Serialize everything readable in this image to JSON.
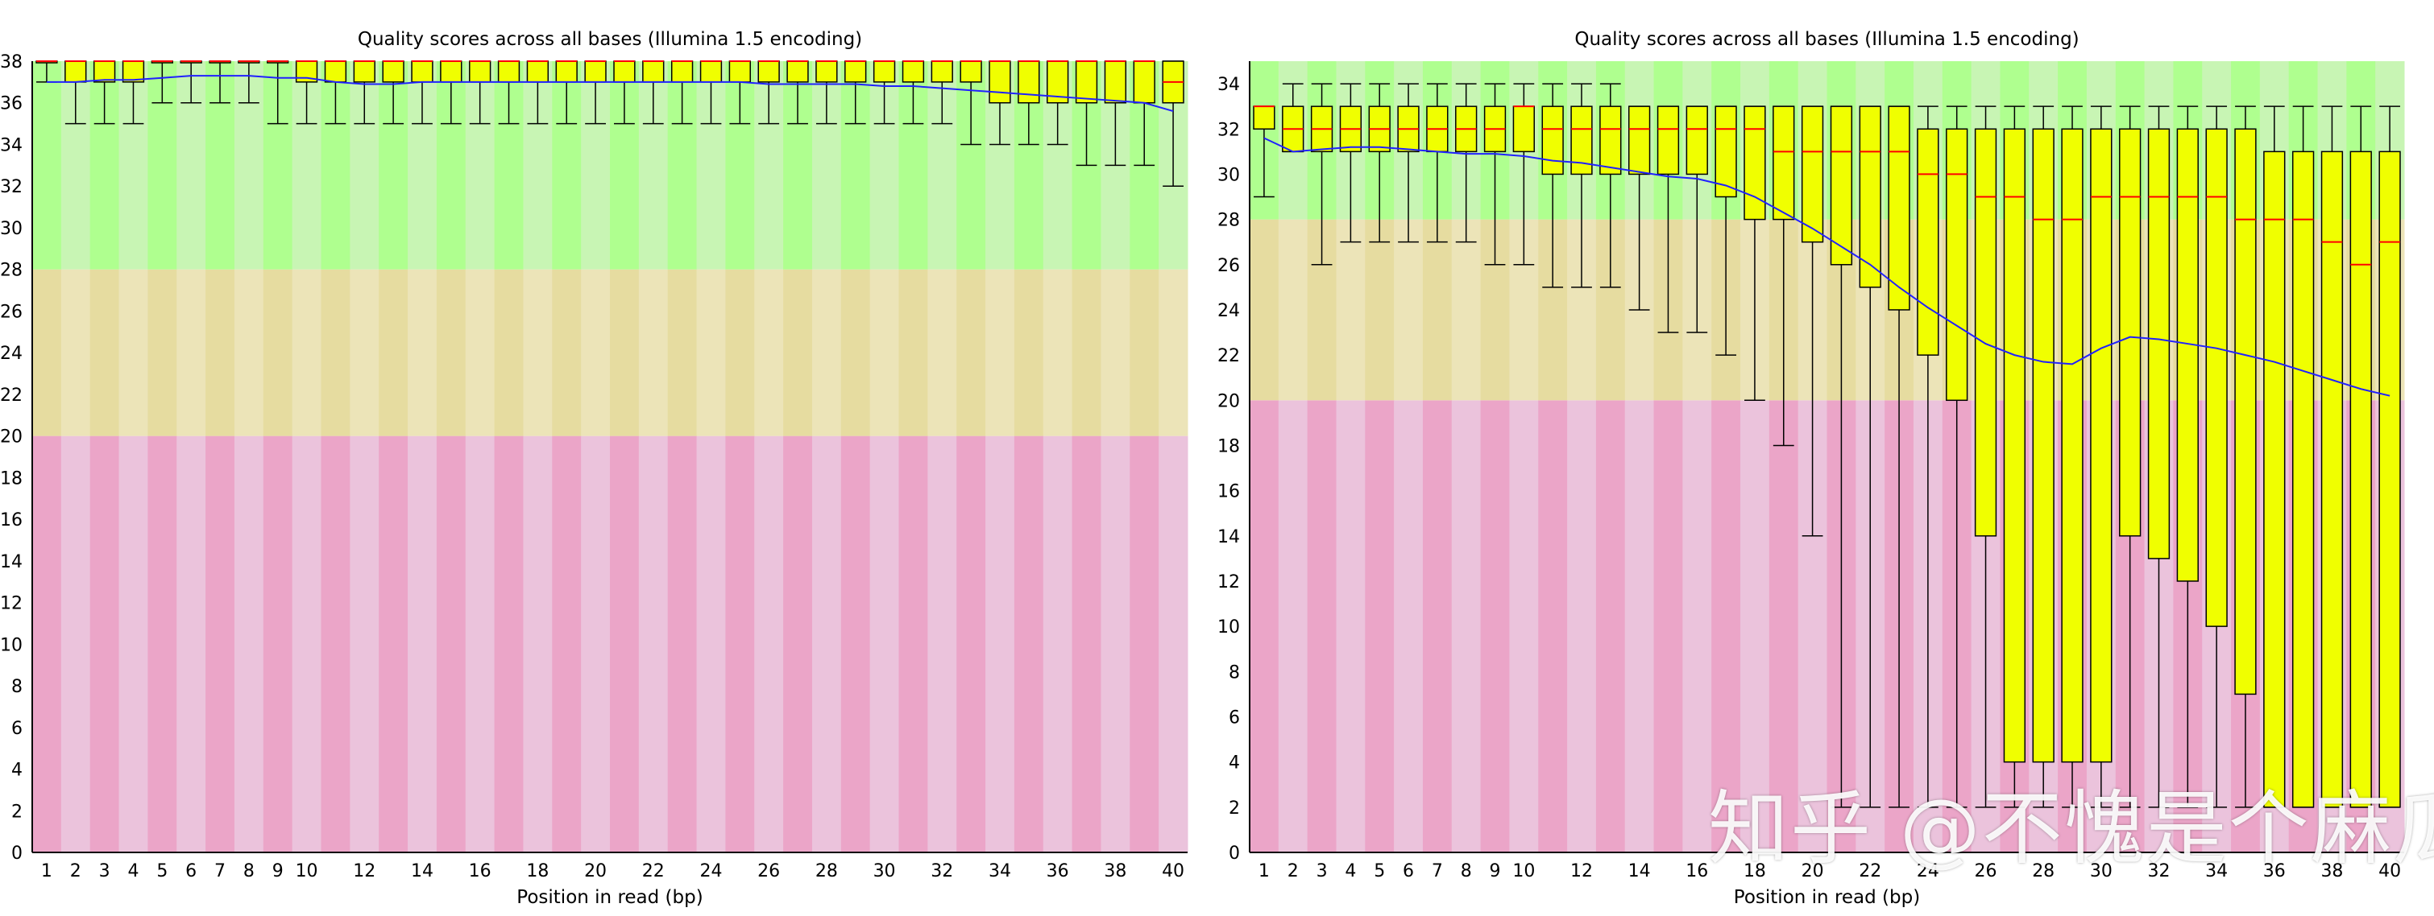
{
  "watermark": "知乎 @不愧是个麻瓜",
  "colors": {
    "green_dark": "#afff8f",
    "green_light": "#c8f5b4",
    "orange_dark": "#e6dca0",
    "orange_light": "#ece4b8",
    "red_dark": "#eba5c8",
    "red_light": "#ebc3dc",
    "box": "#f0ff00",
    "median": "#ff0000",
    "mean": "#2020ff"
  },
  "chart_data": [
    {
      "type": "boxplot",
      "title": "Quality scores across all bases (Illumina 1.5 encoding)",
      "xlabel": "Position in read (bp)",
      "ylabel": "",
      "ylim": [
        0,
        38
      ],
      "yticks": [
        0,
        2,
        4,
        6,
        8,
        10,
        12,
        14,
        16,
        18,
        20,
        22,
        24,
        26,
        28,
        30,
        32,
        34,
        36,
        38
      ],
      "xticks": [
        "1",
        "2",
        "3",
        "4",
        "5",
        "6",
        "7",
        "8",
        "9",
        "10",
        "12",
        "14",
        "16",
        "18",
        "20",
        "22",
        "24",
        "26",
        "28",
        "30",
        "32",
        "34",
        "36",
        "38",
        "40"
      ],
      "x_labeled_positions": [
        1,
        2,
        3,
        4,
        5,
        6,
        7,
        8,
        9,
        10,
        12,
        14,
        16,
        18,
        20,
        22,
        24,
        26,
        28,
        30,
        32,
        34,
        36,
        38,
        40
      ],
      "bands": [
        {
          "from": 0,
          "to": 20,
          "quality": "poor"
        },
        {
          "from": 20,
          "to": 28,
          "quality": "reasonable"
        },
        {
          "from": 28,
          "to": 38,
          "quality": "good"
        }
      ],
      "positions": [
        1,
        2,
        3,
        4,
        5,
        6,
        7,
        8,
        9,
        10,
        11,
        12,
        13,
        14,
        15,
        16,
        17,
        18,
        19,
        20,
        21,
        22,
        23,
        24,
        25,
        26,
        27,
        28,
        29,
        30,
        31,
        32,
        33,
        34,
        35,
        36,
        37,
        38,
        39,
        40
      ],
      "q1": [
        38,
        37,
        37,
        37,
        38,
        38,
        38,
        38,
        38,
        37,
        37,
        37,
        37,
        37,
        37,
        37,
        37,
        37,
        37,
        37,
        37,
        37,
        37,
        37,
        37,
        37,
        37,
        37,
        37,
        37,
        37,
        37,
        37,
        36,
        36,
        36,
        36,
        36,
        36,
        36
      ],
      "q3": [
        38,
        38,
        38,
        38,
        38,
        38,
        38,
        38,
        38,
        38,
        38,
        38,
        38,
        38,
        38,
        38,
        38,
        38,
        38,
        38,
        38,
        38,
        38,
        38,
        38,
        38,
        38,
        38,
        38,
        38,
        38,
        38,
        38,
        38,
        38,
        38,
        38,
        38,
        38,
        38
      ],
      "median": [
        38,
        38,
        38,
        38,
        38,
        38,
        38,
        38,
        38,
        38,
        38,
        38,
        38,
        38,
        38,
        38,
        38,
        38,
        38,
        38,
        38,
        38,
        38,
        38,
        38,
        38,
        38,
        38,
        38,
        38,
        38,
        38,
        38,
        38,
        38,
        38,
        38,
        38,
        38,
        37
      ],
      "low": [
        37,
        35,
        35,
        35,
        36,
        36,
        36,
        36,
        35,
        35,
        35,
        35,
        35,
        35,
        35,
        35,
        35,
        35,
        35,
        35,
        35,
        35,
        35,
        35,
        35,
        35,
        35,
        35,
        35,
        35,
        35,
        35,
        34,
        34,
        34,
        34,
        33,
        33,
        33,
        32
      ],
      "high": [
        38,
        38,
        38,
        38,
        38,
        38,
        38,
        38,
        38,
        38,
        38,
        38,
        38,
        38,
        38,
        38,
        38,
        38,
        38,
        38,
        38,
        38,
        38,
        38,
        38,
        38,
        38,
        38,
        38,
        38,
        38,
        38,
        38,
        38,
        38,
        38,
        38,
        38,
        38,
        38
      ],
      "mean": [
        37.0,
        37.0,
        37.1,
        37.1,
        37.2,
        37.3,
        37.3,
        37.3,
        37.2,
        37.2,
        37.0,
        36.9,
        36.9,
        37.0,
        37.0,
        37.0,
        37.0,
        37.0,
        37.0,
        37.0,
        37.0,
        37.0,
        37.0,
        37.0,
        37.0,
        36.9,
        36.9,
        36.9,
        36.9,
        36.8,
        36.8,
        36.7,
        36.6,
        36.5,
        36.4,
        36.3,
        36.2,
        36.1,
        36.0,
        35.6
      ]
    },
    {
      "type": "boxplot",
      "title": "Quality scores across all bases (Illumina 1.5 encoding)",
      "xlabel": "Position in read (bp)",
      "ylabel": "",
      "ylim": [
        0,
        35
      ],
      "yticks": [
        0,
        2,
        4,
        6,
        8,
        10,
        12,
        14,
        16,
        18,
        20,
        22,
        24,
        26,
        28,
        30,
        32,
        34
      ],
      "xticks": [
        "1",
        "2",
        "3",
        "4",
        "5",
        "6",
        "7",
        "8",
        "9",
        "10",
        "12",
        "14",
        "16",
        "18",
        "20",
        "22",
        "24",
        "26",
        "28",
        "30",
        "32",
        "34",
        "36",
        "38",
        "40"
      ],
      "x_labeled_positions": [
        1,
        2,
        3,
        4,
        5,
        6,
        7,
        8,
        9,
        10,
        12,
        14,
        16,
        18,
        20,
        22,
        24,
        26,
        28,
        30,
        32,
        34,
        36,
        38,
        40
      ],
      "bands": [
        {
          "from": 0,
          "to": 20,
          "quality": "poor"
        },
        {
          "from": 20,
          "to": 28,
          "quality": "reasonable"
        },
        {
          "from": 28,
          "to": 35,
          "quality": "good"
        }
      ],
      "positions": [
        1,
        2,
        3,
        4,
        5,
        6,
        7,
        8,
        9,
        10,
        11,
        12,
        13,
        14,
        15,
        16,
        17,
        18,
        19,
        20,
        21,
        22,
        23,
        24,
        25,
        26,
        27,
        28,
        29,
        30,
        31,
        32,
        33,
        34,
        35,
        36,
        37,
        38,
        39,
        40
      ],
      "q1": [
        32,
        31,
        31,
        31,
        31,
        31,
        31,
        31,
        31,
        31,
        30,
        30,
        30,
        30,
        30,
        30,
        29,
        28,
        28,
        27,
        26,
        25,
        24,
        22,
        20,
        14,
        4,
        4,
        4,
        4,
        14,
        13,
        12,
        10,
        7,
        2,
        2,
        2,
        2,
        2
      ],
      "q3": [
        33,
        33,
        33,
        33,
        33,
        33,
        33,
        33,
        33,
        33,
        33,
        33,
        33,
        33,
        33,
        33,
        33,
        33,
        33,
        33,
        33,
        33,
        33,
        32,
        32,
        32,
        32,
        32,
        32,
        32,
        32,
        32,
        32,
        32,
        32,
        31,
        31,
        31,
        31,
        31
      ],
      "median": [
        33,
        32,
        32,
        32,
        32,
        32,
        32,
        32,
        32,
        33,
        32,
        32,
        32,
        32,
        32,
        32,
        32,
        32,
        31,
        31,
        31,
        31,
        31,
        30,
        30,
        29,
        29,
        28,
        28,
        29,
        29,
        29,
        29,
        29,
        28,
        28,
        28,
        27,
        26,
        27
      ],
      "low": [
        29,
        31,
        26,
        27,
        27,
        27,
        27,
        27,
        26,
        26,
        25,
        25,
        25,
        24,
        23,
        23,
        22,
        20,
        18,
        14,
        2,
        2,
        2,
        2,
        2,
        2,
        2,
        2,
        2,
        2,
        2,
        2,
        2,
        2,
        2,
        2,
        2,
        2,
        2,
        2
      ],
      "high": [
        33,
        34,
        34,
        34,
        34,
        34,
        34,
        34,
        34,
        34,
        34,
        34,
        34,
        33,
        33,
        33,
        33,
        33,
        33,
        33,
        33,
        33,
        33,
        33,
        33,
        33,
        33,
        33,
        33,
        33,
        33,
        33,
        33,
        33,
        33,
        33,
        33,
        33,
        33,
        33
      ],
      "mean": [
        31.6,
        31.0,
        31.1,
        31.2,
        31.2,
        31.1,
        31.0,
        30.9,
        30.9,
        30.8,
        30.6,
        30.5,
        30.3,
        30.1,
        29.9,
        29.8,
        29.5,
        29.0,
        28.3,
        27.6,
        26.8,
        26.0,
        25.0,
        24.1,
        23.3,
        22.5,
        22.0,
        21.7,
        21.6,
        22.3,
        22.8,
        22.7,
        22.5,
        22.3,
        22.0,
        21.7,
        21.3,
        20.9,
        20.5,
        20.2
      ]
    }
  ]
}
